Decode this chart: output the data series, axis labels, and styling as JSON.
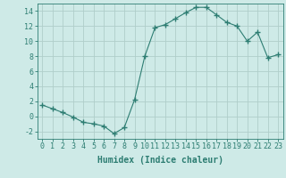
{
  "x": [
    0,
    1,
    2,
    3,
    4,
    5,
    6,
    7,
    8,
    9,
    10,
    11,
    12,
    13,
    14,
    15,
    16,
    17,
    18,
    19,
    20,
    21,
    22,
    23
  ],
  "y": [
    1.5,
    1.0,
    0.5,
    -0.1,
    -0.8,
    -1.0,
    -1.3,
    -2.3,
    -1.5,
    2.2,
    8.0,
    11.8,
    12.2,
    13.0,
    13.8,
    14.5,
    14.5,
    13.5,
    12.5,
    12.0,
    10.0,
    11.2,
    7.8,
    8.2
  ],
  "line_color": "#2d7d72",
  "marker": "+",
  "marker_size": 4,
  "bg_color": "#ceeae7",
  "grid_color": "#b0ceca",
  "xlabel": "Humidex (Indice chaleur)",
  "xlim": [
    -0.5,
    23.5
  ],
  "ylim": [
    -3.0,
    15.0
  ],
  "yticks": [
    -2,
    0,
    2,
    4,
    6,
    8,
    10,
    12,
    14
  ],
  "xticks": [
    0,
    1,
    2,
    3,
    4,
    5,
    6,
    7,
    8,
    9,
    10,
    11,
    12,
    13,
    14,
    15,
    16,
    17,
    18,
    19,
    20,
    21,
    22,
    23
  ],
  "tick_color": "#2d7d72",
  "label_fontsize": 6,
  "xlabel_fontsize": 7
}
